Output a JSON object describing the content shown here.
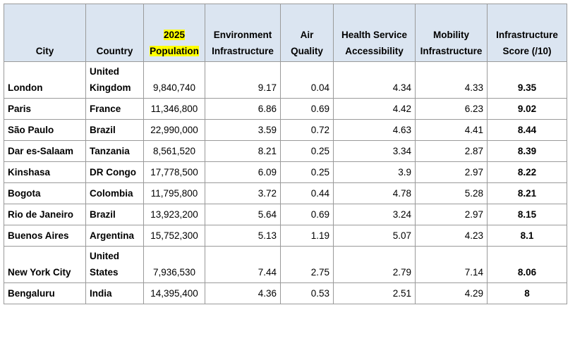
{
  "table": {
    "header": [
      "City",
      "Country",
      "2025 Population",
      "Environment Infrastructure",
      "Air Quality",
      "Health Service Accessibility",
      "Mobility Infrastructure",
      "Infrastructure Score (/10)"
    ],
    "rows": [
      [
        "London",
        "United Kingdom",
        "9,840,740",
        "9.17",
        "0.04",
        "4.34",
        "4.33",
        "9.35"
      ],
      [
        "Paris",
        "France",
        "11,346,800",
        "6.86",
        "0.69",
        "4.42",
        "6.23",
        "9.02"
      ],
      [
        "São Paulo",
        "Brazil",
        "22,990,000",
        "3.59",
        "0.72",
        "4.63",
        "4.41",
        "8.44"
      ],
      [
        "Dar es-Salaam",
        "Tanzania",
        "8,561,520",
        "8.21",
        "0.25",
        "3.34",
        "2.87",
        "8.39"
      ],
      [
        "Kinshasa",
        "DR Congo",
        "17,778,500",
        "6.09",
        "0.25",
        "3.9",
        "2.97",
        "8.22"
      ],
      [
        "Bogota",
        "Colombia",
        "11,795,800",
        "3.72",
        "0.44",
        "4.78",
        "5.28",
        "8.21"
      ],
      [
        "Rio de Janeiro",
        "Brazil",
        "13,923,200",
        "5.64",
        "0.69",
        "3.24",
        "2.97",
        "8.15"
      ],
      [
        "Buenos Aires",
        "Argentina",
        "15,752,300",
        "5.13",
        "1.19",
        "5.07",
        "4.23",
        "8.1"
      ],
      [
        "New York City",
        "United States",
        "7,936,530",
        "7.44",
        "2.75",
        "2.79",
        "7.14",
        "8.06"
      ],
      [
        "Bengaluru",
        "India",
        "14,395,400",
        "4.36",
        "0.53",
        "2.51",
        "4.29",
        "8"
      ]
    ]
  }
}
